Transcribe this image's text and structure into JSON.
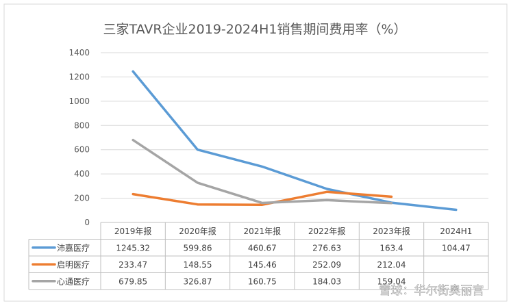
{
  "chart_data": {
    "type": "line",
    "title": "三家TAVR企业2019-2024H1销售期间费用率（%）",
    "categories": [
      "2019年报",
      "2020年报",
      "2021年报",
      "2022年报",
      "2023年报",
      "2024H1"
    ],
    "ylim": [
      0,
      1400
    ],
    "yticks": [
      "0",
      "200",
      "400",
      "600",
      "800",
      "1000",
      "1200",
      "1400"
    ],
    "grid": true,
    "legend": "data-table",
    "series": [
      {
        "name": "沛嘉医疗",
        "color": "#5b9bd5",
        "values": [
          1245.32,
          599.86,
          460.67,
          276.63,
          163.4,
          104.47
        ],
        "labels": [
          "1245.32",
          "599.86",
          "460.67",
          "276.63",
          "163.4",
          "104.47"
        ]
      },
      {
        "name": "启明医疗",
        "color": "#ed7d31",
        "values": [
          233.47,
          148.55,
          145.46,
          252.09,
          212.04,
          null
        ],
        "labels": [
          "233.47",
          "148.55",
          "145.46",
          "252.09",
          "212.04",
          ""
        ]
      },
      {
        "name": "心通医疗",
        "color": "#a5a5a5",
        "values": [
          679.85,
          326.87,
          160.75,
          184.03,
          159.04,
          null
        ],
        "labels": [
          "679.85",
          "326.87",
          "160.75",
          "184.03",
          "159.04",
          ""
        ]
      }
    ]
  },
  "watermark": "雪球：华尔街奥丽宫"
}
